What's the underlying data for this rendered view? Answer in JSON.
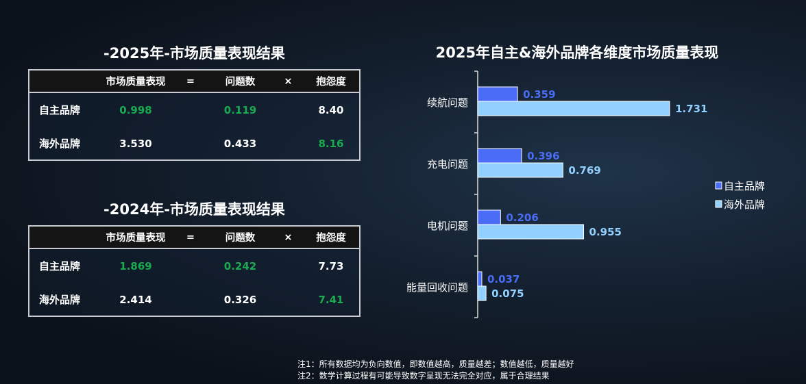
{
  "tables": [
    {
      "title": "-2025年-市场质量表现结果",
      "header": [
        "",
        "市场质量表现",
        "=",
        "问题数",
        "×",
        "抱怨度"
      ],
      "rows": [
        {
          "brand": "自主品牌",
          "quality": "0.998",
          "issues": "0.119",
          "complaint": "8.40",
          "green": [
            true,
            true,
            false
          ]
        },
        {
          "brand": "海外品牌",
          "quality": "3.530",
          "issues": "0.433",
          "complaint": "8.16",
          "green": [
            false,
            false,
            true
          ]
        }
      ]
    },
    {
      "title": "-2024年-市场质量表现结果",
      "header": [
        "",
        "市场质量表现",
        "=",
        "问题数",
        "×",
        "抱怨度"
      ],
      "rows": [
        {
          "brand": "自主品牌",
          "quality": "1.869",
          "issues": "0.242",
          "complaint": "7.73",
          "green": [
            true,
            true,
            false
          ]
        },
        {
          "brand": "海外品牌",
          "quality": "2.414",
          "issues": "0.326",
          "complaint": "7.41",
          "green": [
            false,
            false,
            true
          ]
        }
      ]
    }
  ],
  "chart_data": {
    "type": "bar",
    "orientation": "horizontal",
    "title": "2025年自主&海外品牌各维度市场质量表现",
    "categories": [
      "续航问题",
      "充电问题",
      "电机问题",
      "能量回收问题"
    ],
    "series": [
      {
        "name": "自主品牌",
        "values": [
          0.359,
          0.396,
          0.206,
          0.037
        ],
        "color": "#4a6cf7"
      },
      {
        "name": "海外品牌",
        "values": [
          1.731,
          0.769,
          0.955,
          0.075
        ],
        "color": "#92d0ff"
      }
    ],
    "legend": "right",
    "grid": false
  },
  "notes": [
    "注1：所有数据均为负向数值，即数值越高，质量越差；数值越低，质量越好",
    "注2：数学计算过程有可能导致数字呈现无法完全对应，属于合理结果"
  ],
  "colors": {
    "green": "#1aab50"
  }
}
